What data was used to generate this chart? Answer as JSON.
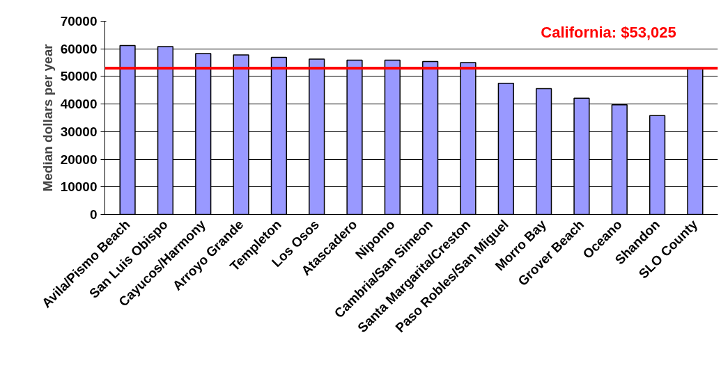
{
  "chart_data": {
    "type": "bar",
    "ylabel": "Median dollars per year",
    "categories": [
      "Avila/Pismo Beach",
      "San Luis Obispo",
      "Cayucos/Harmony",
      "Arroyo Grande",
      "Templeton",
      "Los Osos",
      "Atascadero",
      "Nipomo",
      "Cambria/San Simeon",
      "Santa Margarita/Creston",
      "Paso Robles/San Miguel",
      "Morro Bay",
      "Grover Beach",
      "Oceano",
      "Shandon",
      "SLO County"
    ],
    "values": [
      61200,
      60800,
      58300,
      57800,
      56900,
      56300,
      55900,
      55900,
      55400,
      55000,
      47500,
      45600,
      42100,
      39700,
      35800,
      52900
    ],
    "color": "#9999ff",
    "ylim": [
      0,
      70000
    ],
    "yticks": [
      0,
      10000,
      20000,
      30000,
      40000,
      50000,
      60000,
      70000
    ],
    "grid": "y",
    "ref_lines": [
      {
        "axis": "y",
        "value": 53025,
        "label": "California: $53,025",
        "color": "#ff0000"
      }
    ]
  }
}
